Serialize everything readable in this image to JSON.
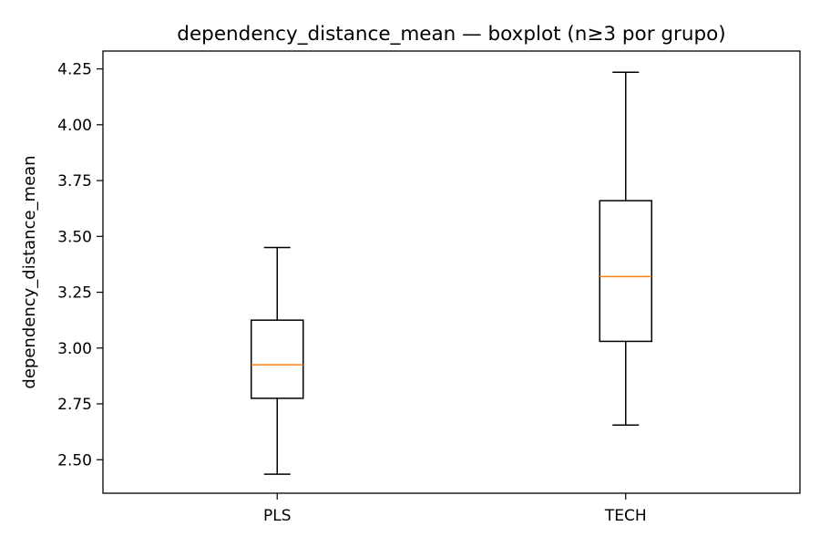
{
  "chart_data": {
    "type": "boxplot",
    "title": "dependency_distance_mean — boxplot (n≥3 por grupo)",
    "xlabel": "",
    "ylabel": "dependency_distance_mean",
    "ylim": [
      2.35,
      4.33
    ],
    "yticks": [
      2.5,
      2.75,
      3.0,
      3.25,
      3.5,
      3.75,
      4.0,
      4.25
    ],
    "ytick_labels": [
      "2.50",
      "2.75",
      "3.00",
      "3.25",
      "3.50",
      "3.75",
      "4.00",
      "4.25"
    ],
    "grid": false,
    "categories": [
      "PLS",
      "TECH"
    ],
    "boxes": [
      {
        "name": "PLS",
        "whisker_low": 2.435,
        "q1": 2.775,
        "median": 2.925,
        "q3": 3.125,
        "whisker_high": 3.45
      },
      {
        "name": "TECH",
        "whisker_low": 2.655,
        "q1": 3.03,
        "median": 3.32,
        "q3": 3.66,
        "whisker_high": 4.235
      }
    ],
    "colors": {
      "median": "#ff7f0e",
      "box": "#000000",
      "axes": "#000000"
    }
  }
}
